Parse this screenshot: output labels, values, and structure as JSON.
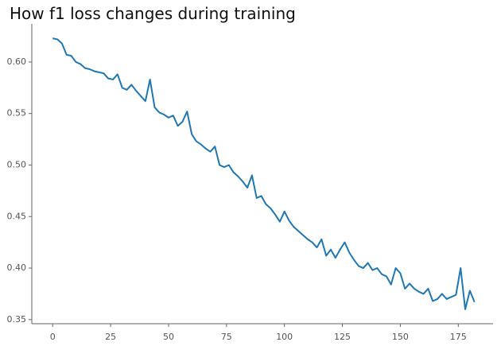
{
  "chart_data": {
    "type": "line",
    "title": "How f1 loss changes during training",
    "x": [
      0,
      2,
      4,
      6,
      8,
      10,
      12,
      14,
      16,
      18,
      20,
      22,
      24,
      26,
      28,
      30,
      32,
      34,
      36,
      38,
      40,
      42,
      44,
      46,
      48,
      50,
      52,
      54,
      56,
      58,
      60,
      62,
      64,
      66,
      68,
      70,
      72,
      74,
      76,
      78,
      80,
      82,
      84,
      86,
      88,
      90,
      92,
      94,
      96,
      98,
      100,
      102,
      104,
      106,
      108,
      110,
      112,
      114,
      116,
      118,
      120,
      122,
      124,
      126,
      128,
      130,
      132,
      134,
      136,
      138,
      140,
      142,
      144,
      146,
      148,
      150,
      152,
      154,
      156,
      158,
      160,
      162,
      164,
      166,
      168,
      170,
      172,
      174,
      176,
      178,
      180,
      182
    ],
    "series": [
      {
        "color": "#1f77b4",
        "values": [
          0.623,
          0.622,
          0.618,
          0.607,
          0.606,
          0.6,
          0.598,
          0.594,
          0.593,
          0.591,
          0.59,
          0.589,
          0.584,
          0.583,
          0.588,
          0.575,
          0.573,
          0.578,
          0.572,
          0.567,
          0.562,
          0.583,
          0.556,
          0.551,
          0.549,
          0.546,
          0.548,
          0.538,
          0.542,
          0.552,
          0.53,
          0.523,
          0.52,
          0.516,
          0.513,
          0.518,
          0.5,
          0.498,
          0.5,
          0.493,
          0.489,
          0.484,
          0.478,
          0.49,
          0.468,
          0.47,
          0.462,
          0.458,
          0.452,
          0.445,
          0.455,
          0.446,
          0.44,
          0.436,
          0.432,
          0.428,
          0.425,
          0.42,
          0.428,
          0.412,
          0.418,
          0.41,
          0.418,
          0.425,
          0.415,
          0.408,
          0.402,
          0.4,
          0.405,
          0.398,
          0.4,
          0.394,
          0.392,
          0.384,
          0.4,
          0.395,
          0.38,
          0.385,
          0.38,
          0.377,
          0.375,
          0.38,
          0.368,
          0.37,
          0.375,
          0.37,
          0.372,
          0.374,
          0.4,
          0.36,
          0.378,
          0.367
        ]
      }
    ],
    "xlim": [
      -9,
      190
    ],
    "ylim": [
      0.346,
      0.637
    ],
    "xticks": [
      0,
      25,
      50,
      75,
      100,
      125,
      150,
      175
    ],
    "yticks": [
      0.35,
      {
        "value": 0.4,
        "label": "0.40"
      },
      0.45,
      {
        "value": 0.5,
        "label": "0.50"
      },
      0.55,
      {
        "value": 0.6,
        "label": "0.60"
      }
    ],
    "grid": false
  }
}
